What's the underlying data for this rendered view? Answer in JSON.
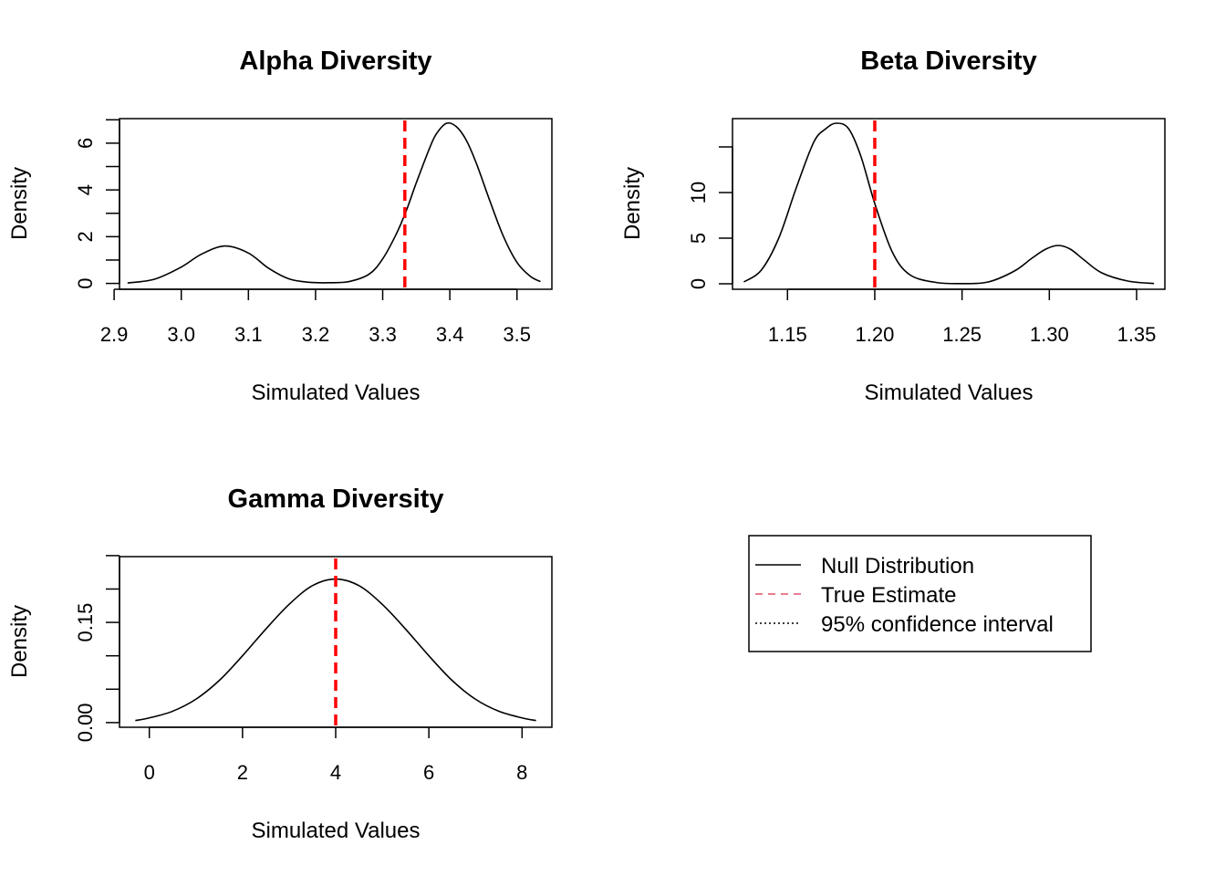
{
  "chart_data": [
    {
      "id": "alpha",
      "type": "line",
      "title": "Alpha Diversity",
      "xlabel": "Simulated Values",
      "ylabel": "Density",
      "xlim": [
        2.908,
        3.552
      ],
      "ylim": [
        -0.25,
        7.05
      ],
      "x_ticks": [
        2.9,
        3.0,
        3.1,
        3.2,
        3.3,
        3.4,
        3.5
      ],
      "x_tick_labels": [
        "2.9",
        "3.0",
        "3.1",
        "3.2",
        "3.3",
        "3.4",
        "3.5"
      ],
      "y_ticks": [
        0,
        1,
        2,
        3,
        4,
        5,
        6,
        7
      ],
      "y_tick_labels": [
        "0",
        "",
        "2",
        "",
        "4",
        "",
        "6",
        ""
      ],
      "grid": false,
      "series": [
        {
          "role": "null_distribution",
          "x": [
            2.92,
            2.96,
            3.0,
            3.03,
            3.065,
            3.1,
            3.13,
            3.16,
            3.19,
            3.22,
            3.25,
            3.28,
            3.3,
            3.32,
            3.335,
            3.35,
            3.37,
            3.38,
            3.395,
            3.41,
            3.425,
            3.44,
            3.46,
            3.48,
            3.5,
            3.52,
            3.535
          ],
          "y": [
            0.02,
            0.18,
            0.7,
            1.25,
            1.6,
            1.3,
            0.65,
            0.2,
            0.05,
            0.03,
            0.08,
            0.4,
            1.05,
            2.1,
            3.1,
            4.3,
            5.8,
            6.4,
            6.85,
            6.7,
            6.1,
            5.1,
            3.5,
            2.0,
            0.9,
            0.3,
            0.08
          ]
        }
      ],
      "true_estimate": 3.333
    },
    {
      "id": "beta",
      "type": "line",
      "title": "Beta Diversity",
      "xlabel": "Simulated Values",
      "ylabel": "Density",
      "xlim": [
        1.1185,
        1.3662
      ],
      "ylim": [
        -0.6,
        18.1
      ],
      "x_ticks": [
        1.15,
        1.2,
        1.25,
        1.3,
        1.35
      ],
      "x_tick_labels": [
        "1.15",
        "1.20",
        "1.25",
        "1.30",
        "1.35"
      ],
      "y_ticks": [
        0,
        5,
        10,
        15
      ],
      "y_tick_labels": [
        "0",
        "5",
        "10",
        ""
      ],
      "grid": false,
      "series": [
        {
          "role": "null_distribution",
          "x": [
            1.125,
            1.135,
            1.145,
            1.155,
            1.165,
            1.172,
            1.178,
            1.185,
            1.192,
            1.2,
            1.21,
            1.22,
            1.235,
            1.25,
            1.265,
            1.28,
            1.29,
            1.298,
            1.305,
            1.312,
            1.32,
            1.33,
            1.345,
            1.36
          ],
          "y": [
            0.2,
            1.5,
            5.0,
            10.5,
            15.5,
            17.0,
            17.6,
            17.0,
            14.0,
            8.8,
            3.5,
            1.0,
            0.15,
            0.02,
            0.2,
            1.4,
            2.8,
            3.8,
            4.2,
            3.8,
            2.6,
            1.2,
            0.3,
            0.03
          ]
        }
      ],
      "true_estimate": 1.2
    },
    {
      "id": "gamma",
      "type": "line",
      "title": "Gamma Diversity",
      "xlabel": "Simulated Values",
      "ylabel": "Density",
      "xlim": [
        -0.64,
        8.64
      ],
      "ylim": [
        -0.007,
        0.2485
      ],
      "x_ticks": [
        0,
        2,
        4,
        6,
        8
      ],
      "x_tick_labels": [
        "0",
        "2",
        "4",
        "6",
        "8"
      ],
      "y_ticks": [
        0.0,
        0.05,
        0.1,
        0.15,
        0.2,
        0.25
      ],
      "y_tick_labels": [
        "0.00",
        "",
        "",
        "0.15",
        "",
        ""
      ],
      "grid": false,
      "series": [
        {
          "role": "null_distribution",
          "x": [
            -0.3,
            0.0,
            0.5,
            1.0,
            1.5,
            2.0,
            2.5,
            3.0,
            3.5,
            4.0,
            4.5,
            5.0,
            5.5,
            6.0,
            6.5,
            7.0,
            7.5,
            8.0,
            8.3
          ],
          "y": [
            0.003,
            0.007,
            0.017,
            0.035,
            0.063,
            0.1,
            0.14,
            0.177,
            0.205,
            0.215,
            0.205,
            0.177,
            0.14,
            0.1,
            0.063,
            0.035,
            0.017,
            0.007,
            0.003
          ]
        }
      ],
      "true_estimate": 4.0
    }
  ],
  "legend": {
    "placement": "bottom-right panel",
    "items": [
      {
        "label": "Null Distribution",
        "style": "solid",
        "color": "#000000"
      },
      {
        "label": "True Estimate",
        "style": "dashed",
        "color": "#DF536B"
      },
      {
        "label": "95% confidence interval",
        "style": "dotted",
        "color": "#000000"
      }
    ]
  },
  "colors": {
    "null_line": "#000000",
    "true_estimate_line": "#FF0000",
    "legend_true_estimate": "#DF536B"
  }
}
